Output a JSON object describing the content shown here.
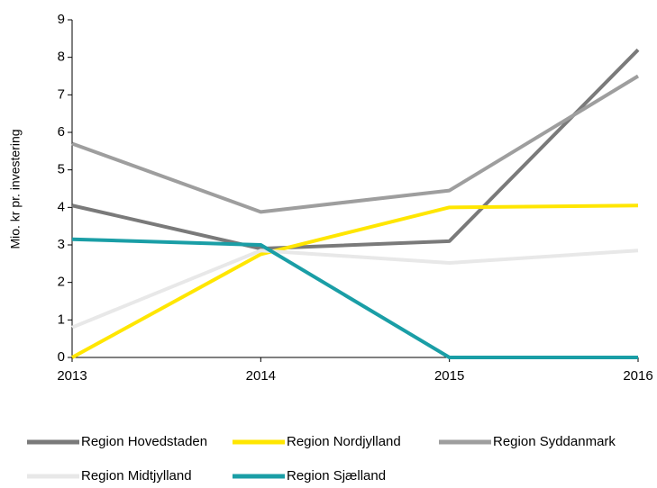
{
  "chart_data": {
    "type": "line",
    "y_label": "Mio. kr pr. investering",
    "categories": [
      "2013",
      "2014",
      "2015",
      "2016"
    ],
    "ylim": [
      0,
      9
    ],
    "yticks": [
      0,
      1,
      2,
      3,
      4,
      5,
      6,
      7,
      8,
      9
    ],
    "grid": false,
    "legend": "bottom",
    "series": [
      {
        "name": "Region Hovedstaden",
        "color": "#7a7a7a",
        "values": [
          4.05,
          2.9,
          3.1,
          8.2
        ]
      },
      {
        "name": "Region Nordjylland",
        "color": "#ffe600",
        "values": [
          0,
          2.75,
          4.0,
          4.05
        ]
      },
      {
        "name": "Region Syddanmark",
        "color": "#9e9e9e",
        "values": [
          5.7,
          3.88,
          4.45,
          7.5
        ]
      },
      {
        "name": "Region Midtjylland",
        "color": "#e8e8e8",
        "values": [
          0.8,
          2.85,
          2.52,
          2.85
        ]
      },
      {
        "name": "Region Sjælland",
        "color": "#1a9ea6",
        "values": [
          3.15,
          3.0,
          0,
          0
        ]
      }
    ]
  }
}
